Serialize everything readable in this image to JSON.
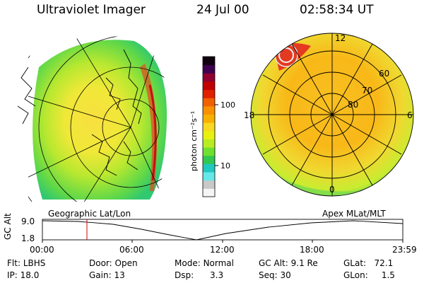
{
  "header": {
    "title": "Ultraviolet Imager",
    "date": "24 Jul 00",
    "time": "02:58:34 UT"
  },
  "colorbar": {
    "unit_label": "photon cm⁻²s⁻¹",
    "ticks": [
      "100",
      "10"
    ],
    "colors": [
      "#f5f5f5",
      "#c8c8c8",
      "#66e8e8",
      "#20c8c0",
      "#30c850",
      "#70e030",
      "#b8ec20",
      "#e8f010",
      "#f8d820",
      "#f8b000",
      "#f89000",
      "#f06000",
      "#e02000",
      "#c00000",
      "#900030",
      "#400050",
      "#100010"
    ]
  },
  "maps": {
    "left_caption": "Geographic Lat/Lon",
    "right_caption": "Apex MLat/MLT",
    "polar_labels": {
      "top": "12",
      "left": "18",
      "right": "6",
      "bottom": "0",
      "rings": [
        "60",
        "70",
        "80"
      ]
    }
  },
  "altitude_plot": {
    "axis_label": "GC Alt",
    "y_ticks": [
      "9.0",
      "1.8"
    ],
    "x_ticks": [
      "00:00",
      "06:00",
      "12:00",
      "18:00",
      "23:59"
    ],
    "cursor_time": "02:58",
    "colors": {
      "cursor": "#d00000",
      "curve": "#000000"
    }
  },
  "footer": {
    "rows": [
      [
        {
          "label": "Flt:",
          "value": "LBHS"
        },
        {
          "label": "Door:",
          "value": "Open"
        },
        {
          "label": "Mode:",
          "value": "Normal"
        },
        {
          "label": "GC Alt:",
          "value": "9.1 Re"
        },
        {
          "label": "GLat:",
          "value": "72.1"
        }
      ],
      [
        {
          "label": "IP:",
          "value": "18.0"
        },
        {
          "label": "Gain:",
          "value": "13"
        },
        {
          "label": "Dsp:",
          "value": "3.3"
        },
        {
          "label": "Seq:",
          "value": "30"
        },
        {
          "label": "GLon:",
          "value": "1.5"
        }
      ]
    ]
  }
}
